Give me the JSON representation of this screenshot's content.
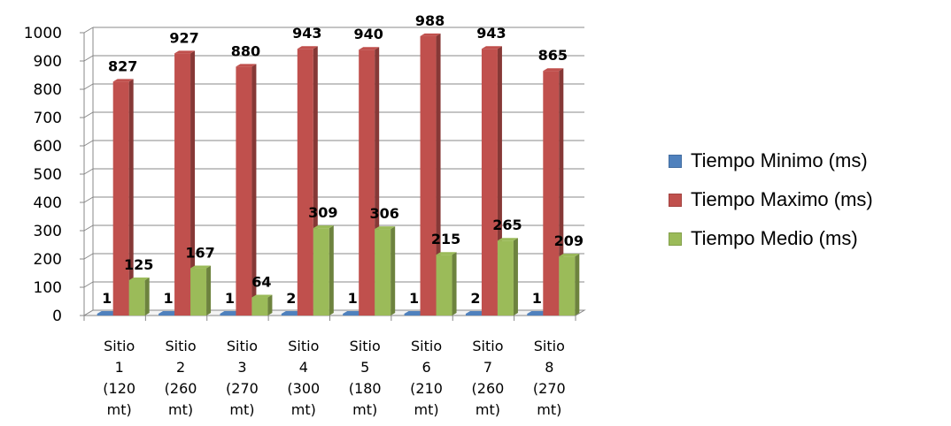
{
  "chart_data": {
    "type": "bar",
    "categories": [
      [
        "Sitio",
        "1",
        "(120",
        "mt)"
      ],
      [
        "Sitio",
        "2",
        "(260",
        "mt)"
      ],
      [
        "Sitio",
        "3",
        "(270",
        "mt)"
      ],
      [
        "Sitio",
        "4",
        "(300",
        "mt)"
      ],
      [
        "Sitio",
        "5",
        "(180",
        "mt)"
      ],
      [
        "Sitio",
        "6",
        "(210",
        "mt)"
      ],
      [
        "Sitio",
        "7",
        "(260",
        "mt)"
      ],
      [
        "Sitio",
        "8",
        "(270",
        "mt)"
      ]
    ],
    "series": [
      {
        "name": "Tiempo Minimo (ms)",
        "values": [
          1,
          1,
          1,
          2,
          1,
          1,
          2,
          1
        ],
        "color": "#4f81bd"
      },
      {
        "name": "Tiempo Maximo (ms)",
        "values": [
          827,
          927,
          880,
          943,
          940,
          988,
          943,
          865
        ],
        "color": "#c0504d"
      },
      {
        "name": "Tiempo Medio (ms)",
        "values": [
          125,
          167,
          64,
          309,
          306,
          215,
          265,
          209
        ],
        "color": "#9bbb59"
      }
    ],
    "ylim": [
      0,
      1000
    ],
    "yticks": [
      0,
      100,
      200,
      300,
      400,
      500,
      600,
      700,
      800,
      900,
      1000
    ],
    "grid": true,
    "legend_position": "right",
    "style": "3d-column"
  }
}
